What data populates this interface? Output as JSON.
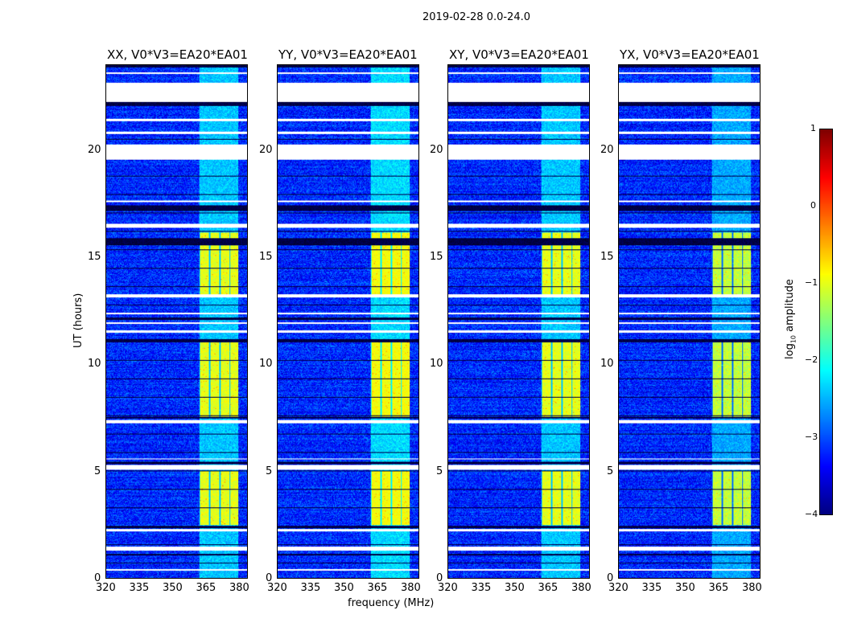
{
  "chart_data": {
    "type": "heatmap",
    "suptitle": "2019-02-28 0.0-24.0",
    "xlabel": "frequency (MHz)",
    "ylabel": "UT (hours)",
    "xlim": [
      320,
      384
    ],
    "ylim": [
      0,
      24
    ],
    "xticks": [
      "320",
      "335",
      "350",
      "365",
      "380"
    ],
    "yticks": [
      "0",
      "5",
      "10",
      "15",
      "20"
    ],
    "panels": [
      {
        "title": "XX, V0*V3=EA20*EA01",
        "band_strength": 1.0
      },
      {
        "title": "YY, V0*V3=EA20*EA01",
        "band_strength": 1.1
      },
      {
        "title": "XY, V0*V3=EA20*EA01",
        "band_strength": 1.0
      },
      {
        "title": "YX, V0*V3=EA20*EA01",
        "band_strength": 0.85
      }
    ],
    "rfi_band_mhz": [
      362,
      380
    ],
    "strong_rfi_hours": [
      [
        2.5,
        5.0
      ],
      [
        7.5,
        11.2
      ],
      [
        13.3,
        16.2
      ]
    ],
    "flagged_hours": [
      [
        0.35,
        0.45
      ],
      [
        1.3,
        1.5
      ],
      [
        2.2,
        2.3
      ],
      [
        5.1,
        5.3
      ],
      [
        5.55,
        5.6
      ],
      [
        7.25,
        7.4
      ],
      [
        11.5,
        11.6
      ],
      [
        11.9,
        12.0
      ],
      [
        12.35,
        12.45
      ],
      [
        13.15,
        13.3
      ],
      [
        16.4,
        16.6
      ],
      [
        17.6,
        17.7
      ],
      [
        19.6,
        20.3
      ],
      [
        20.8,
        20.9
      ],
      [
        21.4,
        21.5
      ],
      [
        22.3,
        23.2
      ],
      [
        23.6,
        23.7
      ]
    ],
    "dark_hours": [
      [
        1.05,
        1.15
      ],
      [
        2.35,
        2.45
      ],
      [
        5.35,
        5.45
      ],
      [
        7.5,
        7.55
      ],
      [
        11.1,
        11.2
      ],
      [
        12.1,
        12.2
      ],
      [
        15.6,
        15.9
      ],
      [
        17.2,
        17.45
      ],
      [
        22.1,
        22.3
      ],
      [
        23.9,
        24.0
      ]
    ],
    "colorbar": {
      "label": "log₁₀ amplitude",
      "range": [
        -4,
        1
      ],
      "ticks": [
        "1",
        "0",
        "−1",
        "−2",
        "−3",
        "−4"
      ],
      "colormap": "jet"
    }
  }
}
